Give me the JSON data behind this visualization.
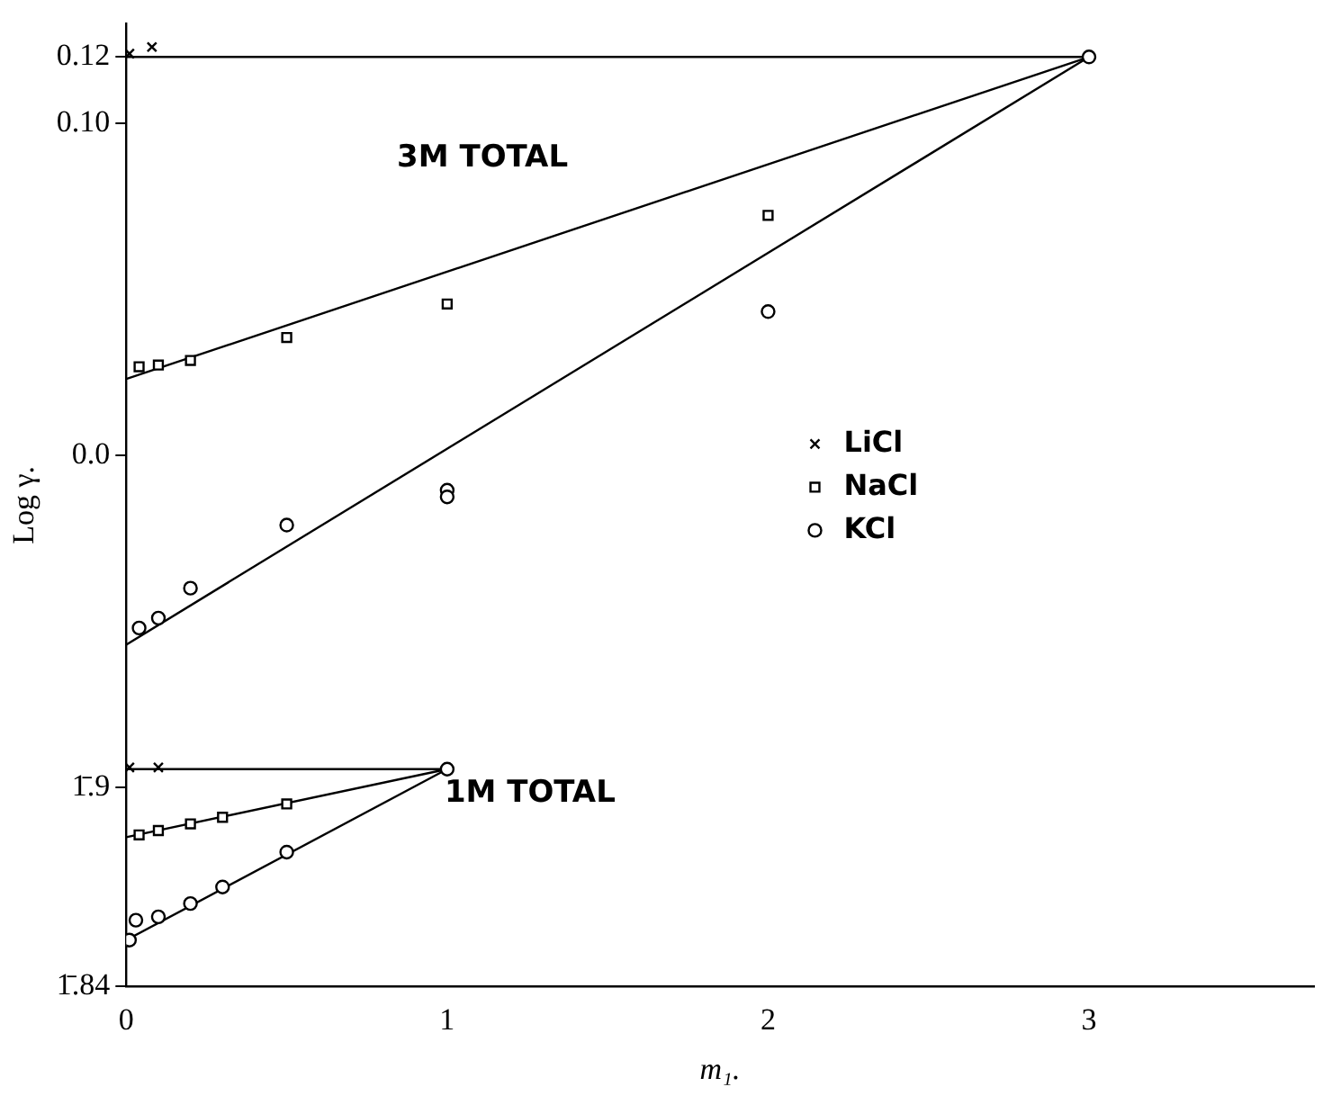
{
  "chart_data": {
    "type": "scatter",
    "xlabel": "m₁.",
    "ylabel": "Log γ.",
    "xlim": [
      0,
      3.7
    ],
    "xticks": [
      0,
      1,
      2,
      3
    ],
    "ylim": [
      -0.16,
      0.13
    ],
    "yticks": [
      {
        "value": -0.16,
        "label": "1̄.84"
      },
      {
        "value": -0.1,
        "label": "1̄.9"
      },
      {
        "value": 0,
        "label": "0.0"
      },
      {
        "value": 0.1,
        "label": "0.10"
      },
      0.12
    ],
    "legend": "right",
    "annotations": [
      "3M TOTAL",
      "1M TOTAL"
    ],
    "series": [
      {
        "name": "LiCl",
        "marker": "cross",
        "color": "#000000",
        "x": [
          0.01,
          0.08
        ],
        "values": [
          0.121,
          0.123
        ]
      },
      {
        "name": "NaCl",
        "marker": "square",
        "color": "#000000",
        "x": [
          0.04,
          0.1,
          0.2,
          0.5,
          1,
          2
        ],
        "values": [
          0.0267,
          0.0272,
          0.0286,
          0.0355,
          0.0456,
          0.0723
        ]
      },
      {
        "name": "KCl",
        "marker": "circle",
        "color": "#000000",
        "x": [
          0.04,
          0.1,
          0.2,
          0.5,
          1,
          1,
          2,
          3
        ],
        "values": [
          -0.052,
          -0.049,
          -0.04,
          -0.021,
          -0.0105,
          -0.0125,
          0.0433,
          0.12
        ]
      },
      {
        "marker": "cross",
        "color": "#000000",
        "x": [
          0.01,
          0.1
        ],
        "values": [
          -0.094,
          -0.094
        ]
      },
      {
        "marker": "square",
        "color": "#000000",
        "x": [
          0.04,
          0.1,
          0.2,
          0.3,
          0.5
        ],
        "values": [
          -0.1143,
          -0.113,
          -0.111,
          -0.109,
          -0.105
        ]
      },
      {
        "marker": "circle",
        "color": "#000000",
        "x": [
          0.01,
          0.02,
          0.03,
          0.1,
          0.2,
          0.3,
          0.5,
          1
        ],
        "values": [
          -0.146,
          null,
          -0.14,
          -0.139,
          -0.135,
          -0.13,
          -0.1195,
          -0.0945
        ]
      },
      {
        "type": "line",
        "marker": "none",
        "color": "#000000",
        "x": [
          0,
          3
        ],
        "values": [
          0.12,
          0.12
        ]
      },
      {
        "type": "line",
        "marker": "none",
        "color": "#000000",
        "x": [
          0,
          3
        ],
        "values": [
          0.023,
          0.12
        ]
      },
      {
        "type": "line",
        "marker": "none",
        "color": "#000000",
        "x": [
          0,
          3
        ],
        "values": [
          -0.057,
          0.12
        ]
      },
      {
        "type": "line",
        "marker": "none",
        "color": "#000000",
        "x": [
          0,
          1
        ],
        "values": [
          -0.0945,
          -0.0945
        ]
      },
      {
        "type": "line",
        "marker": "none",
        "color": "#000000",
        "x": [
          0,
          1
        ],
        "values": [
          -0.115,
          -0.0945
        ]
      },
      {
        "type": "line",
        "marker": "none",
        "color": "#000000",
        "x": [
          0,
          1
        ],
        "values": [
          -0.146,
          -0.0945
        ]
      }
    ]
  }
}
